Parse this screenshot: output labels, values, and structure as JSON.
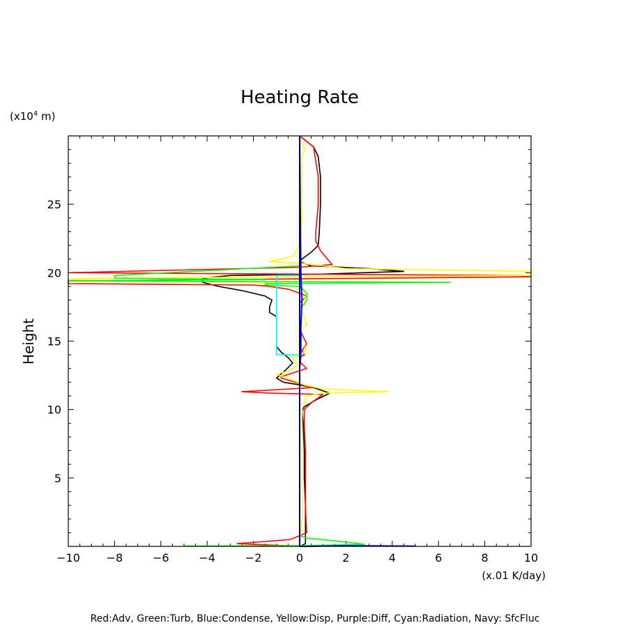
{
  "chart_data": {
    "type": "line",
    "title": "Heating Rate",
    "xlabel": "",
    "ylabel": "Height",
    "x_unit_label": "(x.01 K/day)",
    "y_unit_label_prefix": "(x10",
    "y_unit_label_exp": "4",
    "y_unit_label_suffix": " m)",
    "xlim": [
      -10,
      10
    ],
    "ylim": [
      0,
      30
    ],
    "grid": false,
    "x_ticks": [
      -10,
      -8,
      -6,
      -4,
      -2,
      0,
      2,
      4,
      6,
      8,
      10
    ],
    "x_tick_labels": [
      "−10",
      "−8",
      "−6",
      "−4",
      "−2",
      "0",
      "2",
      "4",
      "6",
      "8",
      "10"
    ],
    "y_ticks": [
      5,
      10,
      15,
      20,
      25
    ],
    "y_tick_labels": [
      "5",
      "10",
      "15",
      "20",
      "25"
    ],
    "legend_text": "Red:Adv, Green:Turb, Blue:Condense, Yellow:Disp, Purple:Diff, Cyan:Radiation, Navy: SfcFluc",
    "series": [
      {
        "color": "#000000",
        "points": [
          [
            0,
            30
          ],
          [
            0.6,
            29.2
          ],
          [
            0.8,
            28.5
          ],
          [
            0.9,
            27
          ],
          [
            0.9,
            25
          ],
          [
            0.85,
            23
          ],
          [
            0.8,
            22
          ],
          [
            0.5,
            21.5
          ],
          [
            0.1,
            21
          ],
          [
            0,
            20.8
          ],
          [
            0.5,
            20.5
          ],
          [
            3,
            20.3
          ],
          [
            4.5,
            20.1
          ],
          [
            1,
            19.9
          ],
          [
            -3,
            19.8
          ],
          [
            -4.2,
            19.6
          ],
          [
            -4.2,
            19.3
          ],
          [
            -3.5,
            19
          ],
          [
            -2.5,
            18.7
          ],
          [
            -1.5,
            18.3
          ],
          [
            -1.2,
            18
          ],
          [
            -1.3,
            17.5
          ],
          [
            -1.3,
            17.1
          ],
          [
            -1.0,
            16.8
          ],
          [
            -1.0,
            16.5
          ],
          [
            -1.0,
            15
          ],
          [
            -1.0,
            14.6
          ],
          [
            -0.8,
            14.2
          ],
          [
            -0.5,
            13.8
          ],
          [
            -0.3,
            13.4
          ],
          [
            -0.6,
            12.9
          ],
          [
            -1.0,
            12.3
          ],
          [
            -0.7,
            12.0
          ],
          [
            0,
            11.8
          ],
          [
            0.6,
            11.6
          ],
          [
            1.3,
            11.2
          ],
          [
            0.7,
            10.7
          ],
          [
            0.2,
            10.2
          ],
          [
            0.1,
            9.9
          ],
          [
            0.15,
            9
          ],
          [
            0.2,
            7
          ],
          [
            0.2,
            5
          ],
          [
            0.25,
            3
          ],
          [
            0.25,
            1
          ],
          [
            0.25,
            0.2
          ],
          [
            0,
            0
          ]
        ]
      },
      {
        "color": "#ff0000",
        "points": [
          [
            0,
            30
          ],
          [
            0.6,
            29.2
          ],
          [
            0.8,
            27
          ],
          [
            0.8,
            25
          ],
          [
            0.7,
            23
          ],
          [
            0.7,
            22.3
          ],
          [
            0.9,
            21.6
          ],
          [
            1.4,
            20.6
          ],
          [
            0,
            20.4
          ],
          [
            -10,
            20.0
          ],
          [
            9.5,
            19.8
          ],
          [
            10,
            19.7
          ],
          [
            -10,
            19.4
          ],
          [
            -10,
            19.2
          ],
          [
            -2,
            19.1
          ],
          [
            -1.3,
            19
          ],
          [
            -0.5,
            18.8
          ],
          [
            0,
            18.5
          ],
          [
            0.3,
            18.3
          ],
          [
            0,
            17.8
          ],
          [
            0,
            17.5
          ],
          [
            0,
            16.5
          ],
          [
            0,
            16
          ],
          [
            0.1,
            15.5
          ],
          [
            0.3,
            14.8
          ],
          [
            0.1,
            14.3
          ],
          [
            0.2,
            14.0
          ],
          [
            0,
            13.8
          ],
          [
            0,
            13.5
          ],
          [
            0.3,
            13
          ],
          [
            -0.8,
            12.4
          ],
          [
            -0.8,
            12.3
          ],
          [
            0,
            11.9
          ],
          [
            0.5,
            11.6
          ],
          [
            -2.5,
            11.3
          ],
          [
            -1.3,
            11.2
          ],
          [
            1.0,
            11.1
          ],
          [
            0.5,
            10.5
          ],
          [
            0.2,
            10
          ],
          [
            0.2,
            9
          ],
          [
            0.25,
            7
          ],
          [
            0.25,
            5
          ],
          [
            0.25,
            3
          ],
          [
            0.3,
            1
          ],
          [
            -0.4,
            0.5
          ],
          [
            -2.7,
            0.2
          ],
          [
            0.2,
            0
          ]
        ]
      },
      {
        "color": "#ffff00",
        "points": [
          [
            0,
            30
          ],
          [
            0.2,
            29
          ],
          [
            0.1,
            28.5
          ],
          [
            0.1,
            27
          ],
          [
            0.1,
            25
          ],
          [
            0.05,
            23
          ],
          [
            0,
            22
          ],
          [
            -0.3,
            21.2
          ],
          [
            -1.3,
            20.8
          ],
          [
            0,
            20.7
          ],
          [
            2,
            20.3
          ],
          [
            10,
            20.1
          ],
          [
            10,
            19.8
          ],
          [
            -9,
            19.6
          ],
          [
            -10,
            19.5
          ],
          [
            -2,
            19.3
          ],
          [
            0,
            19.2
          ],
          [
            0.3,
            18.5
          ],
          [
            0.2,
            18.0
          ],
          [
            0.15,
            17.5
          ],
          [
            0.05,
            17.2
          ],
          [
            0.2,
            16.8
          ],
          [
            0.3,
            16.2
          ],
          [
            0,
            15.8
          ],
          [
            0,
            15.2
          ],
          [
            0,
            14.8
          ],
          [
            0.3,
            14.5
          ],
          [
            0.1,
            14.0
          ],
          [
            -0.3,
            13.8
          ],
          [
            -0.1,
            13.2
          ],
          [
            -0.5,
            12.8
          ],
          [
            -1.0,
            12.6
          ],
          [
            -0.1,
            12.0
          ],
          [
            0.2,
            11.8
          ],
          [
            1,
            11.5
          ],
          [
            3.8,
            11.3
          ],
          [
            1.0,
            11.2
          ],
          [
            0.3,
            11.0
          ],
          [
            0.2,
            10.5
          ],
          [
            0.1,
            10
          ],
          [
            0.1,
            5
          ],
          [
            0.1,
            2
          ],
          [
            0,
            0
          ]
        ]
      },
      {
        "color": "#00ff00",
        "points": [
          [
            0,
            30
          ],
          [
            0,
            22
          ],
          [
            0,
            20.5
          ],
          [
            -8,
            19.8
          ],
          [
            -8,
            19.6
          ],
          [
            -1.5,
            19.5
          ],
          [
            -10,
            19.4
          ],
          [
            6.5,
            19.3
          ],
          [
            -1.5,
            19.2
          ],
          [
            -1.5,
            19.1
          ],
          [
            0,
            19.0
          ],
          [
            0.3,
            18.5
          ],
          [
            0.3,
            18.0
          ],
          [
            0.2,
            17.7
          ],
          [
            0,
            17.5
          ],
          [
            0,
            14
          ],
          [
            0,
            11.5
          ],
          [
            0,
            10
          ],
          [
            0,
            5
          ],
          [
            0,
            2
          ],
          [
            0,
            0.8
          ],
          [
            0.3,
            0.6
          ],
          [
            1.5,
            0.4
          ],
          [
            2.8,
            0.15
          ],
          [
            0,
            0.05
          ],
          [
            -5,
            0.02
          ]
        ]
      },
      {
        "color": "#00ffff",
        "points": [
          [
            -1.0,
            19.8
          ],
          [
            -1.0,
            19.0
          ],
          [
            -1.0,
            18
          ],
          [
            -1.0,
            15
          ],
          [
            -1.0,
            14
          ],
          [
            0,
            14
          ],
          [
            0,
            19.8
          ],
          [
            -1.0,
            19.8
          ]
        ]
      },
      {
        "color": "#0000ff",
        "points": [
          [
            0,
            30
          ],
          [
            0.05,
            20
          ],
          [
            0.1,
            18
          ],
          [
            0.05,
            16
          ],
          [
            0.05,
            14
          ],
          [
            0,
            13
          ],
          [
            0,
            12
          ],
          [
            0,
            10
          ],
          [
            0,
            5
          ],
          [
            0,
            1
          ],
          [
            0,
            0
          ],
          [
            0.2,
            0
          ],
          [
            2,
            0.05
          ],
          [
            5,
            0.02
          ]
        ]
      },
      {
        "color": "#000080",
        "points": [
          [
            0,
            30
          ],
          [
            0,
            20
          ],
          [
            0,
            15
          ],
          [
            0,
            10
          ],
          [
            0,
            5
          ],
          [
            0,
            0
          ]
        ]
      }
    ]
  }
}
